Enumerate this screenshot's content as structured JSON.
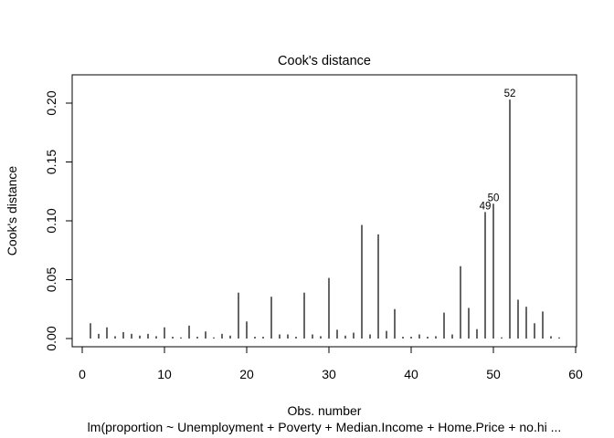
{
  "chart_data": {
    "type": "bar",
    "title": "Cook's distance",
    "xlabel": "Obs. number",
    "ylabel": "Cook's distance",
    "subtitle": "lm(proportion ~ Unemployment + Poverty + Median.Income + Home.Price + no.hi ...",
    "xlim": [
      0,
      60
    ],
    "ylim": [
      0,
      0.2
    ],
    "x_ticks": [
      0,
      10,
      20,
      30,
      40,
      50,
      60
    ],
    "y_ticks": [
      0.0,
      0.05,
      0.1,
      0.15,
      0.2
    ],
    "x_tick_labels": [
      "0",
      "10",
      "20",
      "30",
      "40",
      "50",
      "60"
    ],
    "y_tick_labels": [
      "0.00",
      "0.05",
      "0.10",
      "0.15",
      "0.20"
    ],
    "grid": false,
    "series": [
      {
        "values": [
          0.013,
          0.004,
          0.0095,
          0.002,
          0.0055,
          0.004,
          0.0025,
          0.004,
          0.002,
          0.0095,
          0.0015,
          0.001,
          0.011,
          0.0015,
          0.006,
          0.001,
          0.004,
          0.0025,
          0.039,
          0.0145,
          0.0015,
          0.0015,
          0.0355,
          0.0035,
          0.0035,
          0.0015,
          0.039,
          0.0035,
          0.002,
          0.0515,
          0.0075,
          0.0025,
          0.005,
          0.0965,
          0.0035,
          0.0885,
          0.0065,
          0.025,
          0.0015,
          0.0015,
          0.0035,
          0.0015,
          0.002,
          0.022,
          0.0035,
          0.0615,
          0.026,
          0.008,
          0.1075,
          0.1145,
          0.001,
          0.203,
          0.033,
          0.027,
          0.013,
          0.023,
          0.002,
          0.001
        ]
      }
    ],
    "annotations": [
      {
        "obs": 49,
        "text": "49"
      },
      {
        "obs": 50,
        "text": "50"
      },
      {
        "obs": 52,
        "text": "52"
      }
    ]
  }
}
